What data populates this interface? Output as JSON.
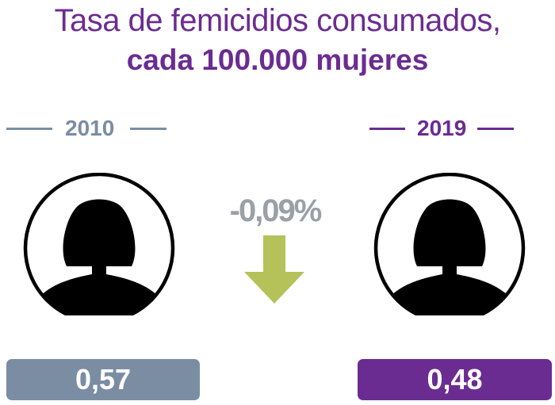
{
  "title": {
    "line1": "Tasa de femicidios consumados,",
    "line2": "cada 100.000 mujeres"
  },
  "colors": {
    "title": "#6b2c91",
    "year_2010": "#7a8da3",
    "year_2019": "#6b2c91",
    "change_text": "#9aa0a6",
    "arrow": "#b5c25a"
  },
  "icons": {
    "left": "woman-silhouette-icon",
    "right": "woman-silhouette-icon",
    "trend": "arrow-down-icon"
  },
  "chart_data": {
    "type": "table",
    "title": "Tasa de femicidios consumados, cada 100.000 mujeres",
    "categories": [
      "2010",
      "2019"
    ],
    "values": [
      0.57,
      0.48
    ],
    "value_labels": [
      "0,57",
      "0,48"
    ],
    "change_label": "-0,09%",
    "change_direction": "down"
  }
}
